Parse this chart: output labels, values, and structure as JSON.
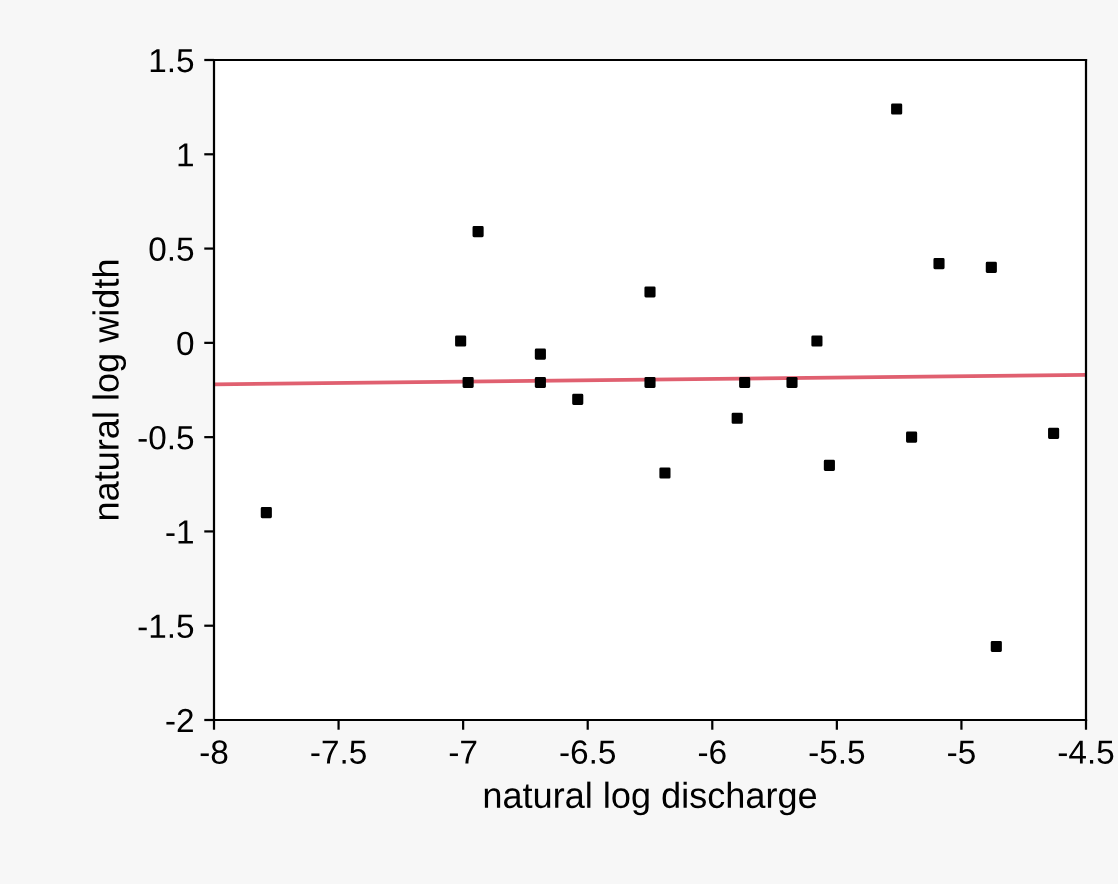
{
  "chart_data": {
    "type": "scatter",
    "xlabel": "natural log discharge",
    "ylabel": "natural log width",
    "xlim": [
      -8,
      -4.5
    ],
    "ylim": [
      -2,
      1.5
    ],
    "xticks": [
      -8,
      -7.5,
      -7,
      -6.5,
      -6,
      -5.5,
      -5,
      -4.5
    ],
    "yticks": [
      -2,
      -1.5,
      -1,
      -0.5,
      0,
      0.5,
      1,
      1.5
    ],
    "grid": false,
    "series": [
      {
        "marker": "square",
        "color": "#000000",
        "x": [
          -7.79,
          -7.01,
          -6.98,
          -6.94,
          -6.69,
          -6.69,
          -6.54,
          -6.25,
          -6.25,
          -6.19,
          -5.9,
          -5.87,
          -5.68,
          -5.58,
          -5.53,
          -5.26,
          -5.2,
          -5.09,
          -4.88,
          -4.86,
          -4.63
        ],
        "values": [
          -0.9,
          0.01,
          -0.21,
          0.59,
          -0.06,
          -0.21,
          -0.3,
          0.27,
          -0.21,
          -0.69,
          -0.4,
          -0.21,
          -0.21,
          0.01,
          -0.65,
          1.24,
          -0.5,
          0.42,
          0.4,
          -1.61,
          -0.48
        ]
      },
      {
        "type": "line",
        "color": "#e06070",
        "x": [
          -8,
          -4.5
        ],
        "values": [
          -0.22,
          -0.17
        ]
      }
    ]
  }
}
